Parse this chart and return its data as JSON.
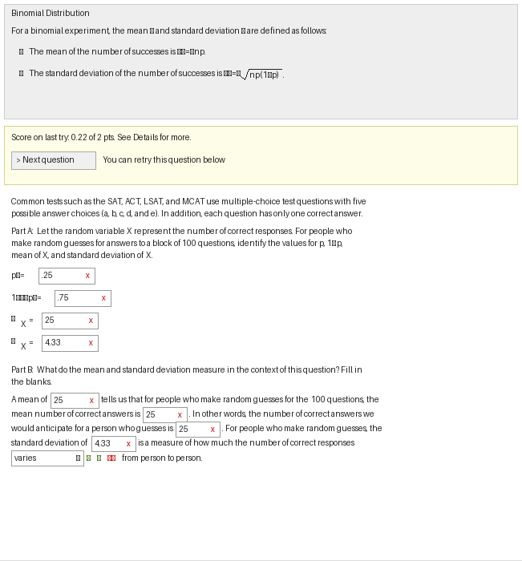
{
  "bg_color": "#ffffff",
  "top_box_bg": "#eeeeee",
  "top_box_border": "#cccccc",
  "score_box_bg": "#fdfde8",
  "score_box_border": "#d4d48a",
  "input_box_border": "#999999",
  "input_box_bg": "#ffffff",
  "red_x_color": "#cc0000",
  "green_check_color": "#336600",
  "text_color": "#222222",
  "figw": 6.51,
  "figh": 7.0,
  "dpi": 100
}
